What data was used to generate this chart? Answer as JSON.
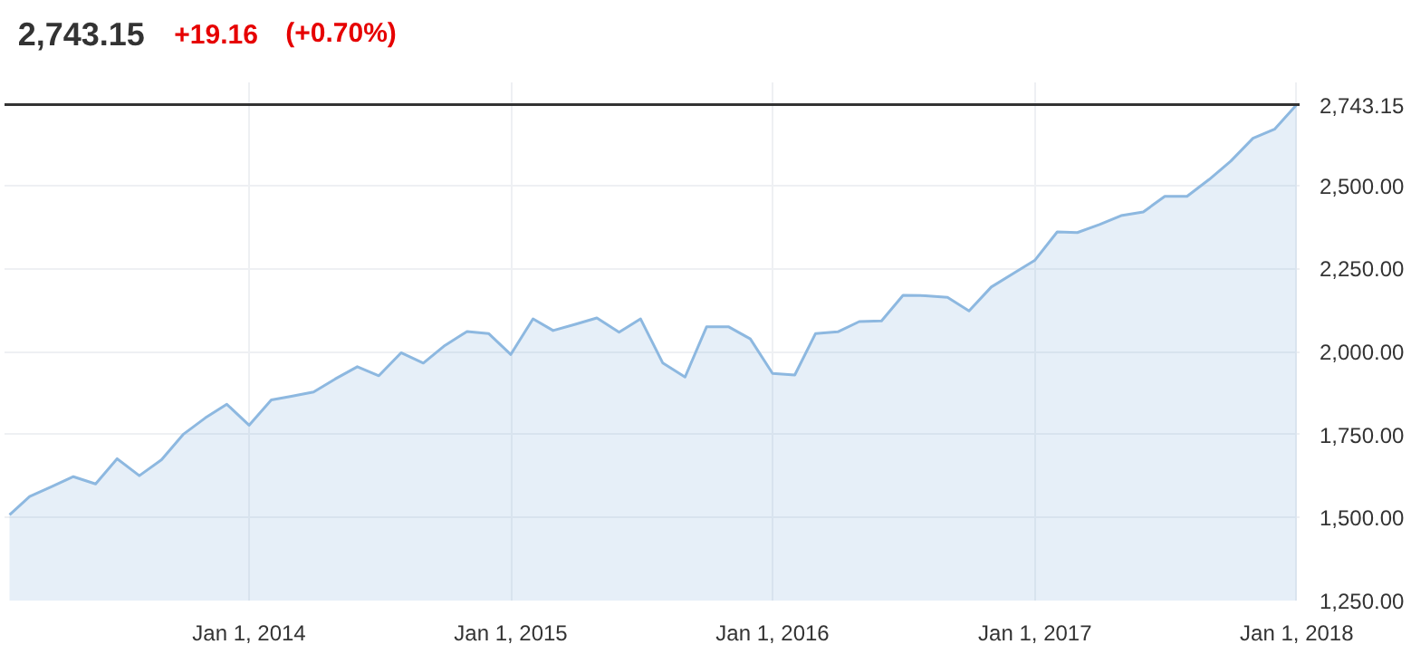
{
  "chart_data": {
    "type": "area",
    "annotations": [
      "2,743.15",
      "+19.16",
      "(+0.70%)"
    ],
    "x": [
      "2013-02",
      "2013-03",
      "2013-04",
      "2013-05",
      "2013-06",
      "2013-07",
      "2013-08",
      "2013-09",
      "2013-10",
      "2013-11",
      "2013-12",
      "2014-01",
      "2014-02",
      "2014-03",
      "2014-04",
      "2014-05",
      "2014-06",
      "2014-07",
      "2014-08",
      "2014-09",
      "2014-10",
      "2014-11",
      "2014-12",
      "2015-01",
      "2015-02",
      "2015-03",
      "2015-04",
      "2015-05",
      "2015-06",
      "2015-07",
      "2015-08",
      "2015-09",
      "2015-10",
      "2015-11",
      "2015-12",
      "2016-01",
      "2016-02",
      "2016-03",
      "2016-04",
      "2016-05",
      "2016-06",
      "2016-07",
      "2016-08",
      "2016-09",
      "2016-10",
      "2016-11",
      "2016-12",
      "2017-01",
      "2017-02",
      "2017-03",
      "2017-04",
      "2017-05",
      "2017-06",
      "2017-07",
      "2017-08",
      "2017-09",
      "2017-10",
      "2017-11",
      "2017-12",
      "2018-01"
    ],
    "series": [
      {
        "color": "#8db8e0",
        "values": [
          1508,
          1563,
          1593,
          1623,
          1601,
          1677,
          1626,
          1674,
          1750,
          1800,
          1841,
          1778,
          1854,
          1865,
          1878,
          1917,
          1954,
          1927,
          1996,
          1965,
          2018,
          2060,
          2054,
          1991,
          2098,
          2063,
          2082,
          2101,
          2058,
          2098,
          1965,
          1923,
          2074,
          2074,
          2038,
          1934,
          1929,
          2054,
          2059,
          2090,
          2092,
          2169,
          2168,
          2163,
          2122,
          2194,
          2234,
          2275,
          2360,
          2358,
          2382,
          2409,
          2420,
          2467,
          2467,
          2518,
          2573,
          2642,
          2669,
          2743
        ]
      }
    ],
    "xlim": [
      "2013-01-25",
      "2018-01-05"
    ],
    "xticks": [
      {
        "value": "2014-01-01",
        "label": "Jan 1, 2014"
      },
      {
        "value": "2015-01-01",
        "label": "Jan 1, 2015"
      },
      {
        "value": "2016-01-01",
        "label": "Jan 1, 2016"
      },
      {
        "value": "2017-01-01",
        "label": "Jan 1, 2017"
      },
      {
        "value": "2018-01-01",
        "label": "Jan 1, 2018"
      }
    ],
    "ylim": [
      1250,
      2810
    ],
    "yticks": [
      {
        "value": 1250,
        "label": "1,250.00"
      },
      {
        "value": 1500,
        "label": "1,500.00"
      },
      {
        "value": 1750,
        "label": "1,750.00"
      },
      {
        "value": 2000,
        "label": "2,000.00"
      },
      {
        "value": 2250,
        "label": "2,250.00"
      },
      {
        "value": 2500,
        "label": "2,500.00"
      }
    ],
    "ref_lines": [
      {
        "axis": "y",
        "value": 2743.15,
        "label": "2,743.15",
        "color": "#333333"
      }
    ],
    "grid": true
  }
}
